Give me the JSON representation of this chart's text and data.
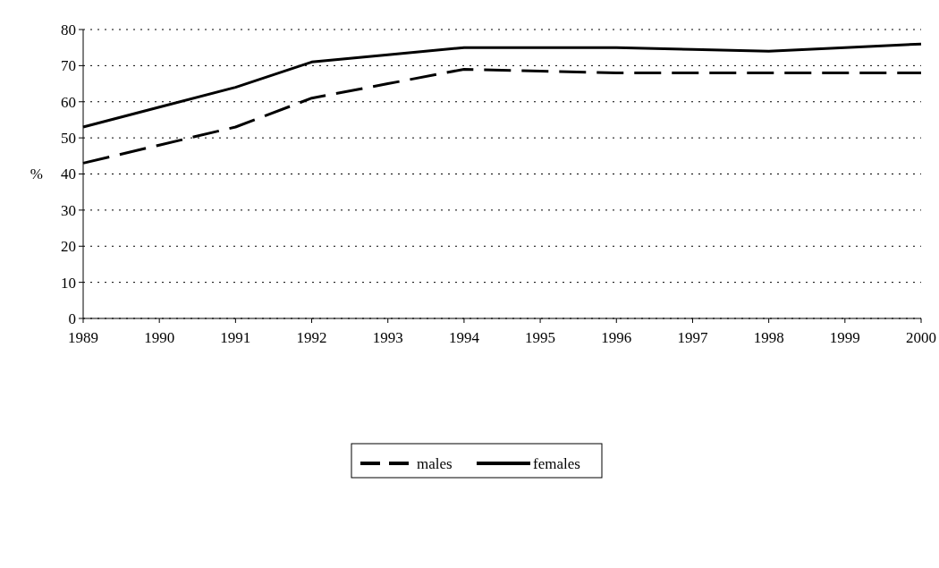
{
  "chart_data": {
    "type": "line",
    "ylabel": "%",
    "x": [
      1989,
      1990,
      1991,
      1992,
      1993,
      1994,
      1995,
      1996,
      1997,
      1998,
      1999,
      2000
    ],
    "xlim": [
      1989,
      2000
    ],
    "xticks": [
      1989,
      1990,
      1991,
      1992,
      1993,
      1994,
      1995,
      1996,
      1997,
      1998,
      1999,
      2000
    ],
    "ylim": [
      0,
      80
    ],
    "yticks": [
      0,
      10,
      20,
      30,
      40,
      50,
      60,
      70,
      80
    ],
    "grid": "y",
    "legend": "bottom",
    "marker": "none",
    "series": [
      {
        "name": "males",
        "color": "#000000",
        "line_style": "dashed",
        "values": [
          43,
          48,
          53,
          61,
          65,
          69,
          68.5,
          68,
          68,
          68,
          68,
          68
        ]
      },
      {
        "name": "females",
        "color": "#000000",
        "line_style": "solid",
        "values": [
          53,
          58.5,
          64,
          71,
          73,
          75,
          75,
          75,
          74.5,
          74,
          75,
          76
        ]
      }
    ]
  }
}
